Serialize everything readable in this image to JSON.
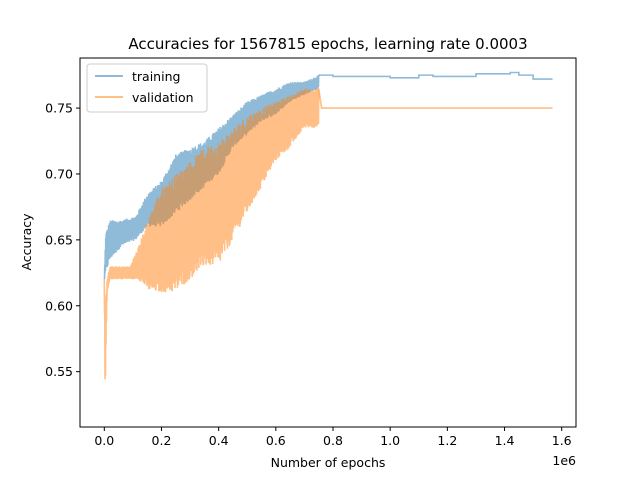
{
  "chart_data": {
    "type": "line",
    "title": "Accuracies for 1567815 epochs, learning rate 0.0003",
    "xlabel": "Number of epochs",
    "ylabel": "Accuracy",
    "x_offset_label": "1e6",
    "xlim": [
      -85000,
      1650000
    ],
    "ylim": [
      0.508,
      0.788
    ],
    "x_ticks": [
      0,
      200000,
      400000,
      600000,
      800000,
      1000000,
      1200000,
      1400000,
      1600000
    ],
    "x_tick_labels": [
      "0.0",
      "0.2",
      "0.4",
      "0.6",
      "0.8",
      "1.0",
      "1.2",
      "1.4",
      "1.6"
    ],
    "y_ticks": [
      0.55,
      0.6,
      0.65,
      0.7,
      0.75
    ],
    "y_tick_labels": [
      "0.55",
      "0.60",
      "0.65",
      "0.70",
      "0.75"
    ],
    "grid": false,
    "legend_position": "top-left",
    "series": [
      {
        "name": "training",
        "color": "#1f77b4",
        "style": "noisy-band",
        "upper": [
          [
            0,
            0.62
          ],
          [
            5000,
            0.655
          ],
          [
            20000,
            0.665
          ],
          [
            60000,
            0.665
          ],
          [
            110000,
            0.668
          ],
          [
            150000,
            0.685
          ],
          [
            200000,
            0.695
          ],
          [
            250000,
            0.715
          ],
          [
            300000,
            0.72
          ],
          [
            350000,
            0.725
          ],
          [
            400000,
            0.735
          ],
          [
            450000,
            0.745
          ],
          [
            500000,
            0.755
          ],
          [
            550000,
            0.76
          ],
          [
            600000,
            0.765
          ],
          [
            650000,
            0.77
          ],
          [
            700000,
            0.77
          ],
          [
            750000,
            0.775
          ]
        ],
        "lower": [
          [
            0,
            0.62
          ],
          [
            5000,
            0.625
          ],
          [
            20000,
            0.635
          ],
          [
            60000,
            0.645
          ],
          [
            110000,
            0.65
          ],
          [
            150000,
            0.66
          ],
          [
            200000,
            0.66
          ],
          [
            250000,
            0.67
          ],
          [
            300000,
            0.68
          ],
          [
            350000,
            0.69
          ],
          [
            400000,
            0.7
          ],
          [
            450000,
            0.72
          ],
          [
            500000,
            0.73
          ],
          [
            550000,
            0.74
          ],
          [
            600000,
            0.745
          ],
          [
            650000,
            0.755
          ],
          [
            700000,
            0.76
          ],
          [
            750000,
            0.765
          ]
        ],
        "tail": [
          [
            750000,
            0.775
          ],
          [
            800000,
            0.774
          ],
          [
            900000,
            0.774
          ],
          [
            1000000,
            0.773
          ],
          [
            1100000,
            0.775
          ],
          [
            1150000,
            0.774
          ],
          [
            1300000,
            0.776
          ],
          [
            1420000,
            0.777
          ],
          [
            1450000,
            0.775
          ],
          [
            1500000,
            0.772
          ],
          [
            1568000,
            0.772
          ]
        ]
      },
      {
        "name": "validation",
        "color": "#ff7f0e",
        "style": "noisy-band",
        "upper": [
          [
            0,
            0.62
          ],
          [
            3000,
            0.6
          ],
          [
            10000,
            0.62
          ],
          [
            20000,
            0.63
          ],
          [
            90000,
            0.63
          ],
          [
            120000,
            0.645
          ],
          [
            160000,
            0.67
          ],
          [
            200000,
            0.69
          ],
          [
            250000,
            0.7
          ],
          [
            300000,
            0.71
          ],
          [
            350000,
            0.72
          ],
          [
            400000,
            0.725
          ],
          [
            450000,
            0.735
          ],
          [
            500000,
            0.745
          ],
          [
            550000,
            0.75
          ],
          [
            600000,
            0.755
          ],
          [
            650000,
            0.76
          ],
          [
            700000,
            0.765
          ],
          [
            750000,
            0.765
          ]
        ],
        "lower": [
          [
            0,
            0.62
          ],
          [
            3000,
            0.52
          ],
          [
            6000,
            0.57
          ],
          [
            10000,
            0.61
          ],
          [
            20000,
            0.62
          ],
          [
            90000,
            0.62
          ],
          [
            120000,
            0.62
          ],
          [
            160000,
            0.61
          ],
          [
            200000,
            0.61
          ],
          [
            250000,
            0.61
          ],
          [
            300000,
            0.62
          ],
          [
            350000,
            0.63
          ],
          [
            400000,
            0.63
          ],
          [
            450000,
            0.65
          ],
          [
            500000,
            0.67
          ],
          [
            550000,
            0.69
          ],
          [
            600000,
            0.71
          ],
          [
            650000,
            0.72
          ],
          [
            700000,
            0.735
          ],
          [
            750000,
            0.735
          ]
        ],
        "tail": [
          [
            760000,
            0.75
          ],
          [
            1568000,
            0.75
          ]
        ]
      }
    ]
  }
}
